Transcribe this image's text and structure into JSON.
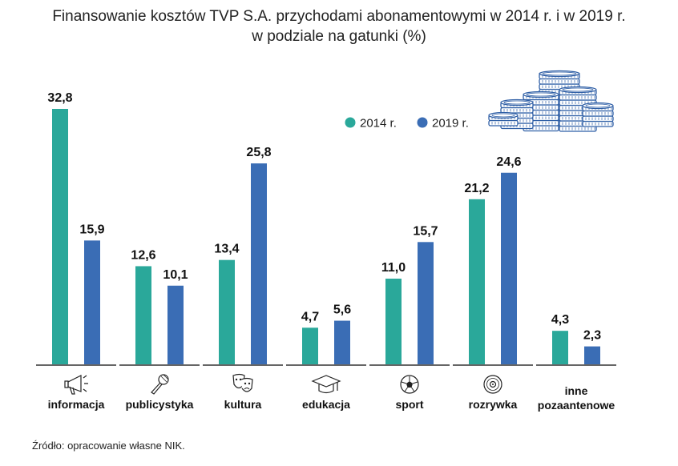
{
  "chart_data": {
    "type": "bar",
    "title_line1": "Finansowanie kosztów TVP S.A. przychodami abonamentowymi w 2014 r. i w 2019 r.",
    "title_line2": "w podziale na gatunki (%)",
    "categories": [
      {
        "label": [
          "informacja"
        ],
        "icon": "megaphone-icon"
      },
      {
        "label": [
          "publicystyka"
        ],
        "icon": "microphone-icon"
      },
      {
        "label": [
          "kultura"
        ],
        "icon": "theater-masks-icon"
      },
      {
        "label": [
          "edukacja"
        ],
        "icon": "graduation-cap-icon"
      },
      {
        "label": [
          "sport"
        ],
        "icon": "soccer-ball-icon"
      },
      {
        "label": [
          "rozrywka"
        ],
        "icon": "vinyl-record-icon"
      },
      {
        "label": [
          "inne",
          "pozaantenowe"
        ],
        "icon": null
      }
    ],
    "series": [
      {
        "name": "2014 r.",
        "color": "#2aa89a",
        "values": [
          32.8,
          12.6,
          13.4,
          4.7,
          11.0,
          21.2,
          4.3
        ],
        "labels": [
          "32,8",
          "12,6",
          "13,4",
          "4,7",
          "11,0",
          "21,2",
          "4,3"
        ]
      },
      {
        "name": "2019 r.",
        "color": "#3a6db5",
        "values": [
          15.9,
          10.1,
          25.8,
          5.6,
          15.7,
          24.6,
          2.3
        ],
        "labels": [
          "15,9",
          "10,1",
          "25,8",
          "5,6",
          "15,7",
          "24,6",
          "2,3"
        ]
      }
    ],
    "ylim": [
      0,
      35
    ],
    "legend_position": "top-right",
    "decoration_icon": "coins-stack-icon"
  },
  "source": "Źródło: opracowanie własne NIK."
}
